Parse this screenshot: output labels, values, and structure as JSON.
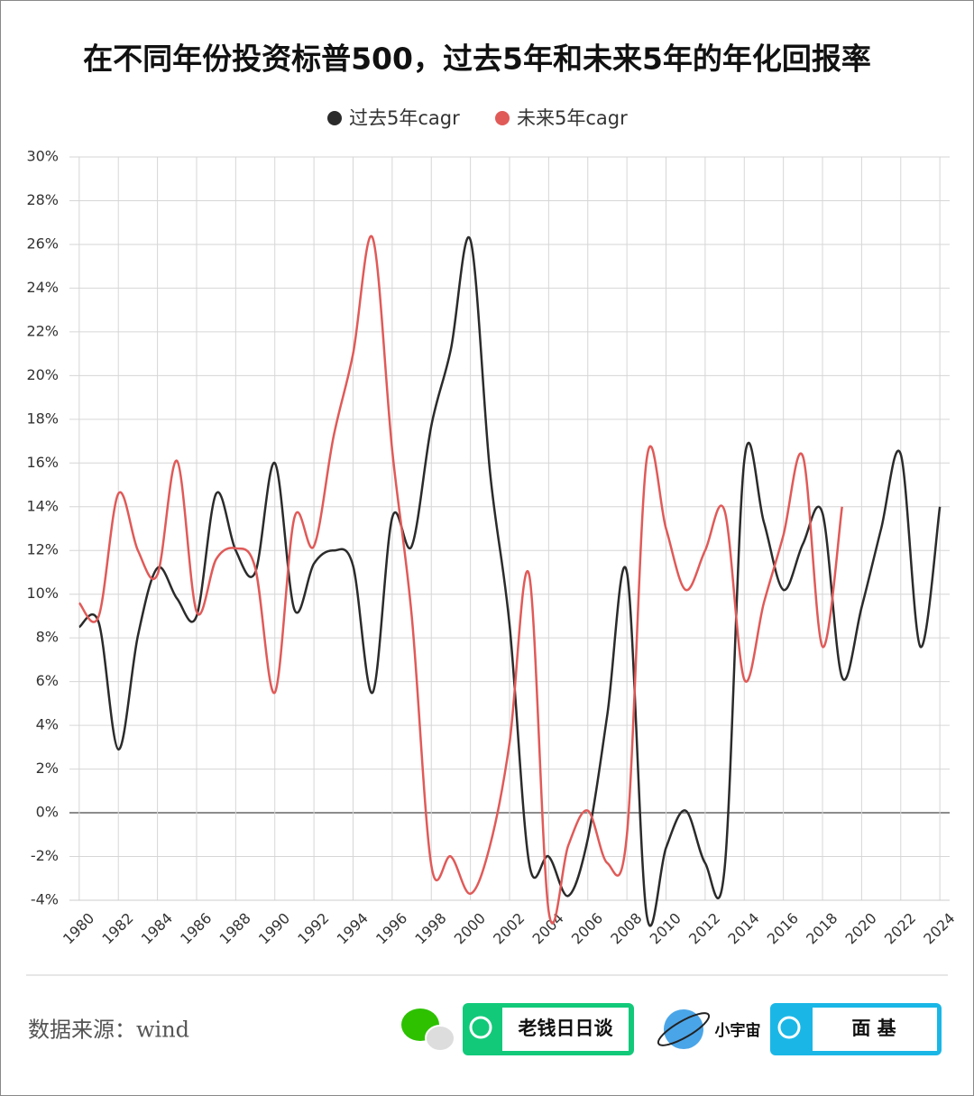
{
  "chart_data": {
    "type": "line",
    "title": "在不同年份投资标普500，过去5年和未来5年的年化回报率",
    "x": [
      1980,
      1981,
      1982,
      1983,
      1984,
      1985,
      1986,
      1987,
      1988,
      1989,
      1990,
      1991,
      1992,
      1993,
      1994,
      1995,
      1996,
      1997,
      1998,
      1999,
      2000,
      2001,
      2002,
      2003,
      2004,
      2005,
      2006,
      2007,
      2008,
      2009,
      2010,
      2011,
      2012,
      2013,
      2014,
      2015,
      2016,
      2017,
      2018,
      2019,
      2020,
      2021,
      2022,
      2023,
      2024
    ],
    "series": [
      {
        "name": "过去5年cagr",
        "color": "#2b2b2b",
        "values": [
          8.5,
          8.7,
          2.9,
          8.1,
          11.2,
          9.8,
          9.0,
          14.6,
          12.0,
          11.0,
          16.0,
          9.3,
          11.4,
          12.0,
          11.3,
          5.5,
          13.5,
          12.2,
          17.7,
          21.2,
          26.2,
          15.6,
          8.6,
          -2.3,
          -2.0,
          -3.8,
          -1.2,
          4.5,
          11.0,
          -4.6,
          -1.6,
          0.1,
          -2.3,
          -2.5,
          16.1,
          13.3,
          10.2,
          12.3,
          13.7,
          6.2,
          9.4,
          13.0,
          16.4,
          7.6,
          14.0
        ]
      },
      {
        "name": "未来5年cagr",
        "color": "#e05a58",
        "values": [
          9.6,
          9.0,
          14.6,
          12.0,
          10.9,
          16.1,
          9.2,
          11.6,
          12.1,
          11.2,
          5.5,
          13.5,
          12.2,
          17.2,
          21.0,
          26.3,
          16.6,
          9.0,
          -2.4,
          -2.0,
          -3.7,
          -1.5,
          3.2,
          10.9,
          -4.5,
          -1.5,
          0.1,
          -2.3,
          -1.0,
          16.1,
          13.0,
          10.2,
          12.0,
          13.8,
          6.1,
          9.6,
          12.7,
          16.3,
          7.6,
          14.0,
          null,
          null,
          null,
          null,
          null
        ]
      }
    ],
    "xlim": [
      1979.5,
      2024.5
    ],
    "xticks": [
      1980,
      1982,
      1984,
      1986,
      1988,
      1990,
      1992,
      1994,
      1996,
      1998,
      2000,
      2002,
      2004,
      2006,
      2008,
      2010,
      2012,
      2014,
      2016,
      2018,
      2020,
      2022,
      2024
    ],
    "ylim": [
      -4,
      30
    ],
    "yticks": [
      {
        "value": -4,
        "label": "-4%"
      },
      {
        "value": -2,
        "label": "-2%"
      },
      {
        "value": 0,
        "label": "0%"
      },
      {
        "value": 2,
        "label": "2%"
      },
      {
        "value": 4,
        "label": "4%"
      },
      {
        "value": 6,
        "label": "6%"
      },
      {
        "value": 8,
        "label": "8%"
      },
      {
        "value": 10,
        "label": "10%"
      },
      {
        "value": 12,
        "label": "12%"
      },
      {
        "value": 14,
        "label": "14%"
      },
      {
        "value": 16,
        "label": "16%"
      },
      {
        "value": 18,
        "label": "18%"
      },
      {
        "value": 20,
        "label": "20%"
      },
      {
        "value": 22,
        "label": "22%"
      },
      {
        "value": 24,
        "label": "24%"
      },
      {
        "value": 26,
        "label": "26%"
      },
      {
        "value": 28,
        "label": "28%"
      },
      {
        "value": 30,
        "label": "30%"
      }
    ],
    "grid": true,
    "legend": "top"
  },
  "footer": {
    "source": "数据来源：wind",
    "brand1": "老钱日日谈",
    "brand2": "小宇宙",
    "brand3": "面 基"
  }
}
